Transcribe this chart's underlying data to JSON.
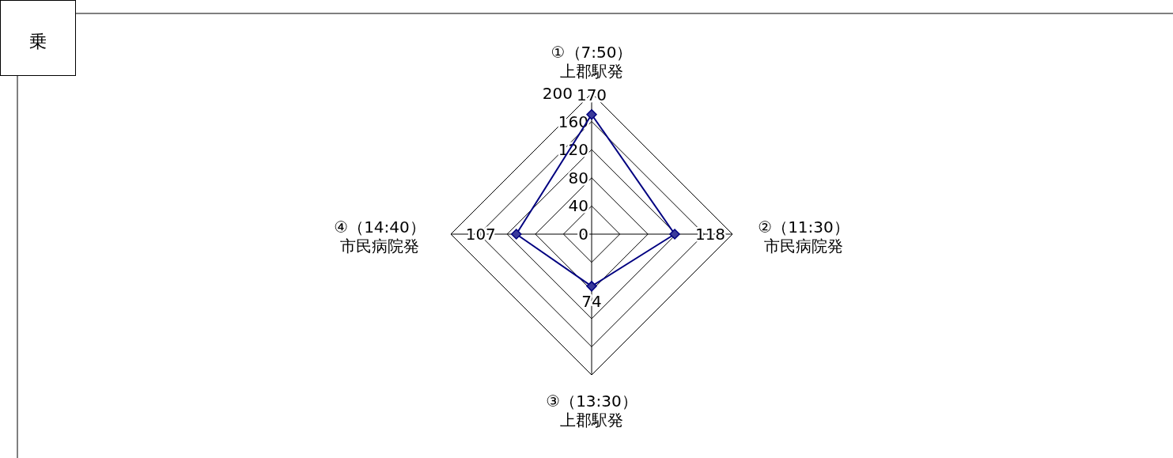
{
  "chart_data": {
    "type": "radar",
    "title": "乗",
    "categories": [
      "①（7:50）上郡駅発",
      "②（11:30）市民病院発",
      "③（13:30）上郡駅発",
      "④（14:40）市民病院発"
    ],
    "series": [
      {
        "color": "#000080",
        "values": [
          170,
          118,
          74,
          107
        ]
      }
    ],
    "ylim": [
      0,
      200
    ],
    "yticks": [
      0,
      40,
      80,
      120,
      160,
      200
    ],
    "grid": true,
    "marker": "diamond",
    "data_labels": true
  }
}
